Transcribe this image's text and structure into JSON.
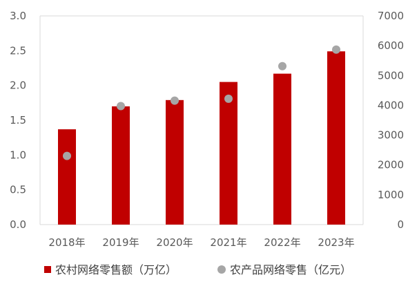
{
  "chart_data": {
    "type": "bar",
    "title": "",
    "categories": [
      "2018年",
      "2019年",
      "2020年",
      "2021年",
      "2022年",
      "2023年"
    ],
    "series": [
      {
        "name": "农村网络零售额（万亿）",
        "type": "bar",
        "axis": "left",
        "color": "#C00000",
        "values": [
          1.37,
          1.7,
          1.79,
          2.05,
          2.17,
          2.49
        ]
      },
      {
        "name": "农产品网络零售（亿元）",
        "type": "scatter",
        "axis": "right",
        "color": "#A6A6A6",
        "values": [
          2305,
          3975,
          4158,
          4221,
          5313,
          5870
        ]
      }
    ],
    "y_left": {
      "min": 0,
      "max": 3.0,
      "ticks": [
        "0.0",
        "0.5",
        "1.0",
        "1.5",
        "2.0",
        "2.5",
        "3.0"
      ]
    },
    "y_right": {
      "min": 0,
      "max": 7000,
      "ticks": [
        "0",
        "1000",
        "2000",
        "3000",
        "4000",
        "5000",
        "6000",
        "7000"
      ]
    },
    "grid": false,
    "legend": "bottom"
  }
}
